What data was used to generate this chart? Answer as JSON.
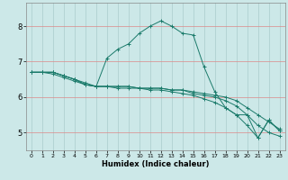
{
  "bg_color": "#cce8e8",
  "grid_color": "#aacccc",
  "line_color": "#1a7a6a",
  "marker_color": "#1a7a6a",
  "xlabel": "Humidex (Indice chaleur)",
  "xlim": [
    -0.5,
    23.5
  ],
  "ylim": [
    4.5,
    8.65
  ],
  "yticks": [
    5,
    6,
    7,
    8
  ],
  "xticks": [
    0,
    1,
    2,
    3,
    4,
    5,
    6,
    7,
    8,
    9,
    10,
    11,
    12,
    13,
    14,
    15,
    16,
    17,
    18,
    19,
    20,
    21,
    22,
    23
  ],
  "lines": [
    {
      "x": [
        0,
        1,
        2,
        3,
        4,
        5,
        6,
        7,
        8,
        9,
        10,
        11,
        12,
        13,
        14,
        15,
        16,
        17,
        18,
        19,
        20,
        21,
        22,
        23
      ],
      "y": [
        6.7,
        6.7,
        6.65,
        6.55,
        6.45,
        6.35,
        6.3,
        6.3,
        6.25,
        6.25,
        6.25,
        6.2,
        6.2,
        6.15,
        6.1,
        6.05,
        5.95,
        5.85,
        5.7,
        5.5,
        5.2,
        4.85,
        5.35,
        5.05
      ]
    },
    {
      "x": [
        0,
        1,
        2,
        3,
        4,
        5,
        6,
        7,
        8,
        9,
        10,
        11,
        12,
        13,
        14,
        15,
        16,
        17,
        18,
        19,
        20,
        21,
        22,
        23
      ],
      "y": [
        6.7,
        6.7,
        6.7,
        6.6,
        6.5,
        6.4,
        6.3,
        6.3,
        6.3,
        6.3,
        6.25,
        6.25,
        6.25,
        6.2,
        6.2,
        6.15,
        6.1,
        6.05,
        6.0,
        5.9,
        5.7,
        5.5,
        5.3,
        5.1
      ]
    },
    {
      "x": [
        0,
        1,
        2,
        3,
        4,
        5,
        6,
        7,
        8,
        9,
        10,
        11,
        12,
        13,
        14,
        15,
        16,
        17,
        18,
        19,
        20,
        21,
        22,
        23
      ],
      "y": [
        6.7,
        6.7,
        6.7,
        6.6,
        6.5,
        6.35,
        6.3,
        6.3,
        6.3,
        6.3,
        6.25,
        6.25,
        6.25,
        6.2,
        6.2,
        6.1,
        6.05,
        6.0,
        5.9,
        5.75,
        5.5,
        5.2,
        5.0,
        4.9
      ]
    },
    {
      "x": [
        0,
        1,
        2,
        3,
        4,
        5,
        6,
        7,
        8,
        9,
        10,
        11,
        12,
        13,
        14,
        15,
        16,
        17,
        18,
        19,
        20,
        21,
        22,
        23
      ],
      "y": [
        6.7,
        6.7,
        6.7,
        6.6,
        6.5,
        6.35,
        6.3,
        7.1,
        7.35,
        7.5,
        7.8,
        8.0,
        8.15,
        8.0,
        7.8,
        7.75,
        6.85,
        6.15,
        5.7,
        5.5,
        5.5,
        4.85,
        5.35,
        5.05
      ]
    }
  ]
}
